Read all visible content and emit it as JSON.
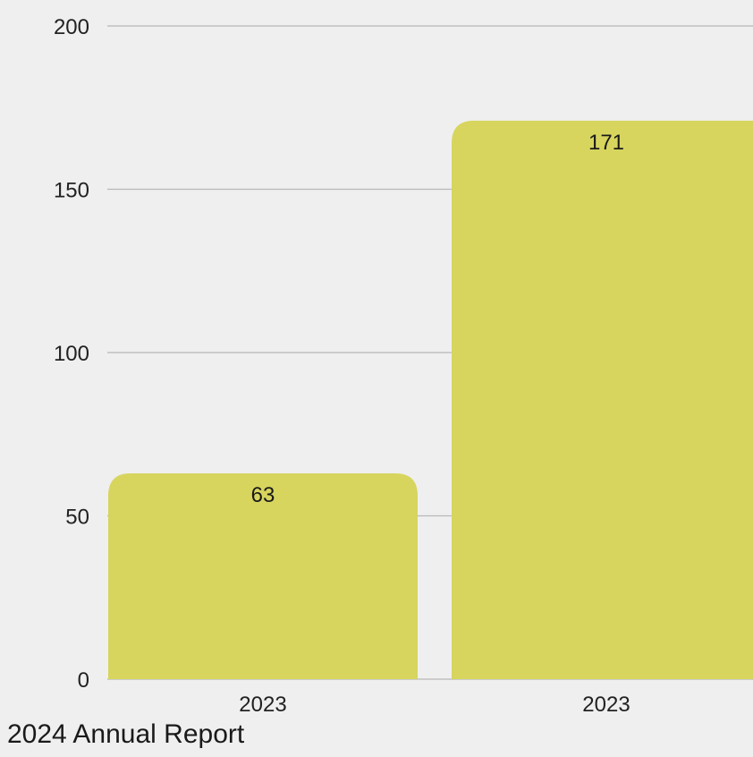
{
  "footer": {
    "text": "2024 Annual Report"
  },
  "chart_data": {
    "type": "bar",
    "categories": [
      "2023",
      "2023"
    ],
    "values": [
      63,
      171
    ],
    "ylim": [
      0,
      200
    ],
    "yticks": [
      0,
      50,
      100,
      150,
      200
    ],
    "grid": true,
    "bar_color": "#d7d55e",
    "background": "#efefef",
    "data_labels": [
      "63",
      "171"
    ]
  }
}
